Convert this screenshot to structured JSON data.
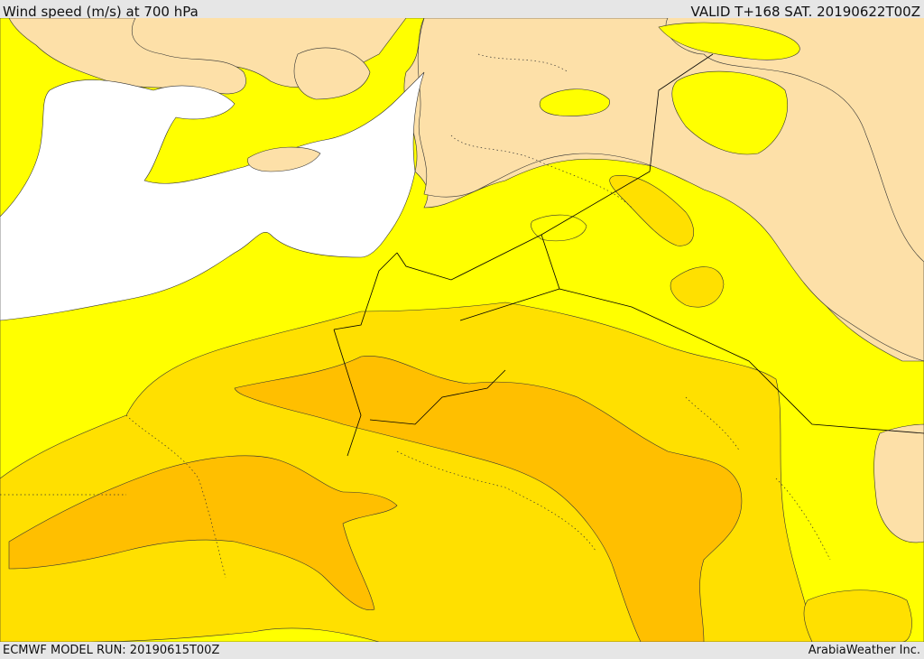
{
  "header": {
    "title": "Wind speed (m/s) at 700 hPa",
    "valid": "VALID T+168 SAT. 20190622T00Z"
  },
  "footer": {
    "model_run": "ECMWF MODEL RUN: 20190615T00Z",
    "credit": "ArabiaWeather Inc."
  },
  "colors": {
    "land_low": "#fde0a8",
    "band_yellow": "#ffff00",
    "band_gold": "#ffe000",
    "band_orange": "#ffbf00",
    "sea": "#ffffff",
    "border": "#000000"
  }
}
